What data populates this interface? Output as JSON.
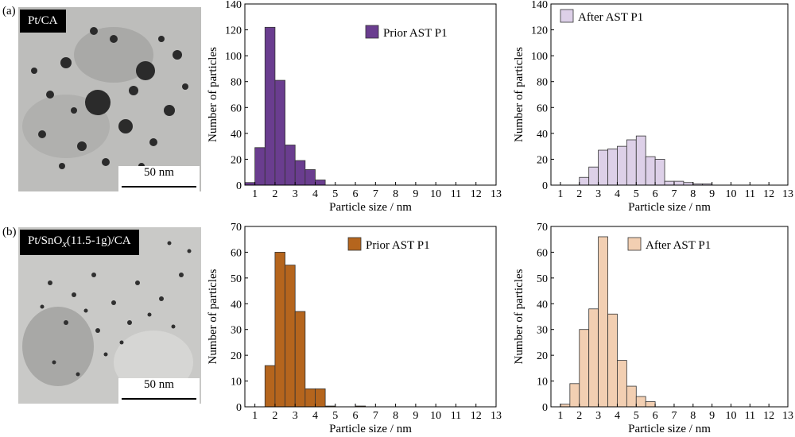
{
  "panels": [
    {
      "label": "(a)",
      "image_label": "Pt/CA",
      "scale_bar": "50 nm"
    },
    {
      "label": "(b)",
      "image_label_prefix": "Pt/SnO",
      "image_label_sub": "x",
      "image_label_suffix": "(11.5-1g)/CA",
      "scale_bar": "50 nm"
    }
  ],
  "chart_data": [
    {
      "type": "bar",
      "legend": "Prior AST P1",
      "color": "#6a3d8f",
      "xlabel": "Particle size / nm",
      "ylabel": "Number of particles",
      "xlim": [
        0.5,
        13
      ],
      "xticks": [
        1,
        2,
        3,
        4,
        5,
        6,
        7,
        8,
        9,
        10,
        11,
        12,
        13
      ],
      "ylim": [
        0,
        140
      ],
      "yticks": [
        0,
        20,
        40,
        60,
        80,
        100,
        120,
        140
      ],
      "bin_width": 0.5,
      "x": [
        0.75,
        1.25,
        1.75,
        2.25,
        2.75,
        3.25,
        3.75,
        4.25
      ],
      "values": [
        2,
        29,
        122,
        81,
        31,
        19,
        12,
        4
      ]
    },
    {
      "type": "bar",
      "legend": "After AST P1",
      "color": "#ddd0e8",
      "xlabel": "Particle size / nm",
      "ylabel": "Number of particles",
      "xlim": [
        0.5,
        13
      ],
      "xticks": [
        1,
        2,
        3,
        4,
        5,
        6,
        7,
        8,
        9,
        10,
        11,
        12,
        13
      ],
      "ylim": [
        0,
        140
      ],
      "yticks": [
        0,
        20,
        40,
        60,
        80,
        100,
        120,
        140
      ],
      "bin_width": 0.5,
      "x": [
        2.25,
        2.75,
        3.25,
        3.75,
        4.25,
        4.75,
        5.25,
        5.75,
        6.25,
        6.75,
        7.25,
        7.75,
        8.25,
        8.75
      ],
      "values": [
        6,
        14,
        27,
        28,
        30,
        35,
        38,
        22,
        20,
        3,
        3,
        2,
        1,
        1
      ]
    },
    {
      "type": "bar",
      "legend": "Prior AST P1",
      "color": "#b5651d",
      "xlabel": "Particle size / nm",
      "ylabel": "Number of particles",
      "xlim": [
        0.5,
        13
      ],
      "xticks": [
        1,
        2,
        3,
        4,
        5,
        6,
        7,
        8,
        9,
        10,
        11,
        12,
        13
      ],
      "ylim": [
        0,
        70
      ],
      "yticks": [
        0,
        10,
        20,
        30,
        40,
        50,
        60,
        70
      ],
      "bin_width": 0.5,
      "x": [
        1.75,
        2.25,
        2.75,
        3.25,
        3.75,
        4.25,
        4.75,
        6.25
      ],
      "values": [
        16,
        60,
        55,
        37,
        7,
        7,
        0.3,
        0.3
      ]
    },
    {
      "type": "bar",
      "legend": "After AST P1",
      "color": "#f2cfb2",
      "xlabel": "Particle size / nm",
      "ylabel": "Number of particles",
      "xlim": [
        0.5,
        13
      ],
      "xticks": [
        1,
        2,
        3,
        4,
        5,
        6,
        7,
        8,
        9,
        10,
        11,
        12,
        13
      ],
      "ylim": [
        0,
        70
      ],
      "yticks": [
        0,
        10,
        20,
        30,
        40,
        50,
        60,
        70
      ],
      "bin_width": 0.5,
      "x": [
        1.25,
        1.75,
        2.25,
        2.75,
        3.25,
        3.75,
        4.25,
        4.75,
        5.25,
        5.75
      ],
      "values": [
        1,
        9,
        30,
        38,
        66,
        36,
        18,
        8,
        4,
        2
      ]
    }
  ]
}
